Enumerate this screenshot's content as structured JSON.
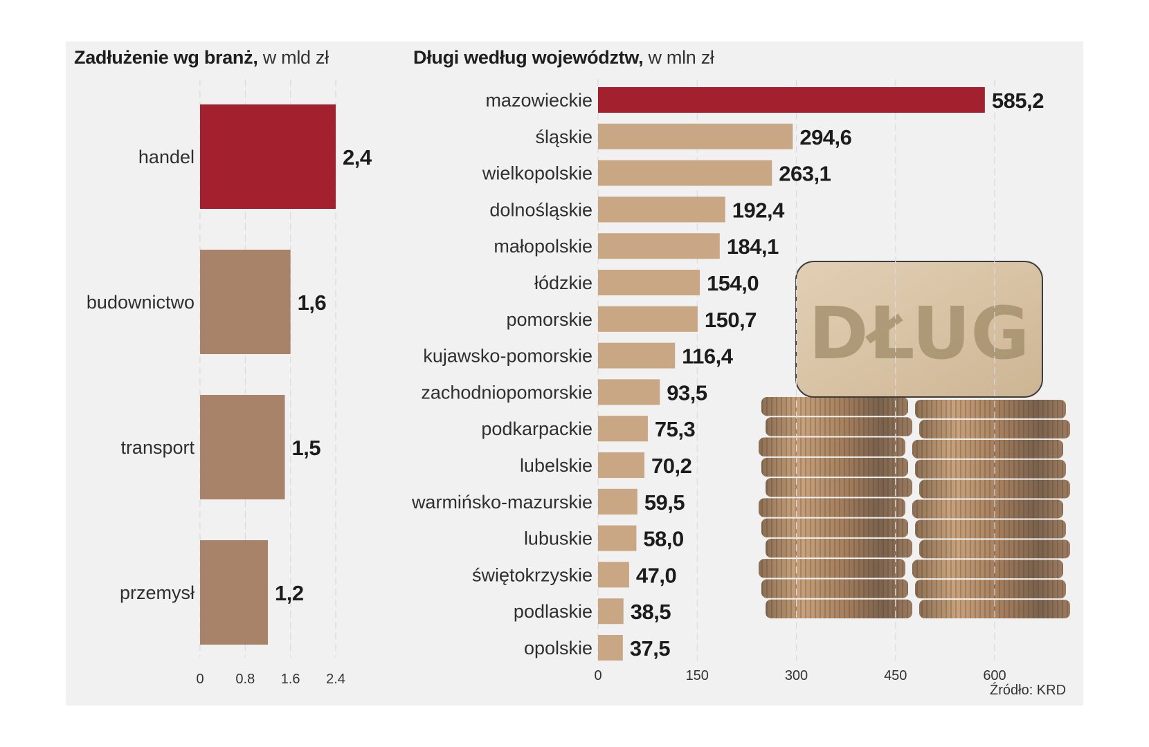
{
  "chart_data": [
    {
      "type": "bar",
      "orientation": "horizontal",
      "title_bold": "Zadłużenie wg branż,",
      "title_light": " w mld zł",
      "unit": "mld zł",
      "categories": [
        "handel",
        "budownictwo",
        "transport",
        "przemysł"
      ],
      "values": [
        2.4,
        1.6,
        1.5,
        1.2
      ],
      "value_labels": [
        "2,4",
        "1,6",
        "1,5",
        "1,2"
      ],
      "highlight_index": 0,
      "xlim": [
        0,
        2.4
      ],
      "xticks": [
        0,
        0.8,
        1.6,
        2.4
      ],
      "xtick_labels": [
        "0",
        "0.8",
        "1.6",
        "2.4"
      ],
      "grid": "vertical dashed",
      "xlabel": "",
      "ylabel": ""
    },
    {
      "type": "bar",
      "orientation": "horizontal",
      "title_bold": "Długi według województw,",
      "title_light": " w mln zł",
      "unit": "mln zł",
      "categories": [
        "mazowieckie",
        "śląskie",
        "wielkopolskie",
        "dolnośląskie",
        "małopolskie",
        "łódzkie",
        "pomorskie",
        "kujawsko-pomorskie",
        "zachodniopomorskie",
        "podkarpackie",
        "lubelskie",
        "warmińsko-mazurskie",
        "lubuskie",
        "świętokrzyskie",
        "podlaskie",
        "opolskie"
      ],
      "values": [
        585.2,
        294.6,
        263.1,
        192.4,
        184.1,
        154.0,
        150.7,
        116.4,
        93.5,
        75.3,
        70.2,
        59.5,
        58.0,
        47.0,
        38.5,
        37.5
      ],
      "value_labels": [
        "585,2",
        "294,6",
        "263,1",
        "192,4",
        "184,1",
        "154,0",
        "150,7",
        "116,4",
        "93,5",
        "75,3",
        "70,2",
        "59,5",
        "58,0",
        "47,0",
        "38,5",
        "37,5"
      ],
      "highlight_index": 0,
      "xlim": [
        0,
        600
      ],
      "xticks": [
        0,
        150,
        300,
        450,
        600
      ],
      "xtick_labels": [
        "0",
        "150",
        "300",
        "450",
        "600"
      ],
      "grid": "vertical dashed",
      "xlabel": "",
      "ylabel": ""
    }
  ],
  "colors": {
    "highlight": "#a3212f",
    "left_bar": "#a8836a",
    "right_bar": "#c9a684",
    "label_text": "#2f2f2f",
    "value_text": "#1c1c1c",
    "background": "#f1f1f2"
  },
  "illustration": {
    "description": "wooden block on stacks of coins",
    "block_text": "DŁUG"
  },
  "source": "Źródło: KRD"
}
